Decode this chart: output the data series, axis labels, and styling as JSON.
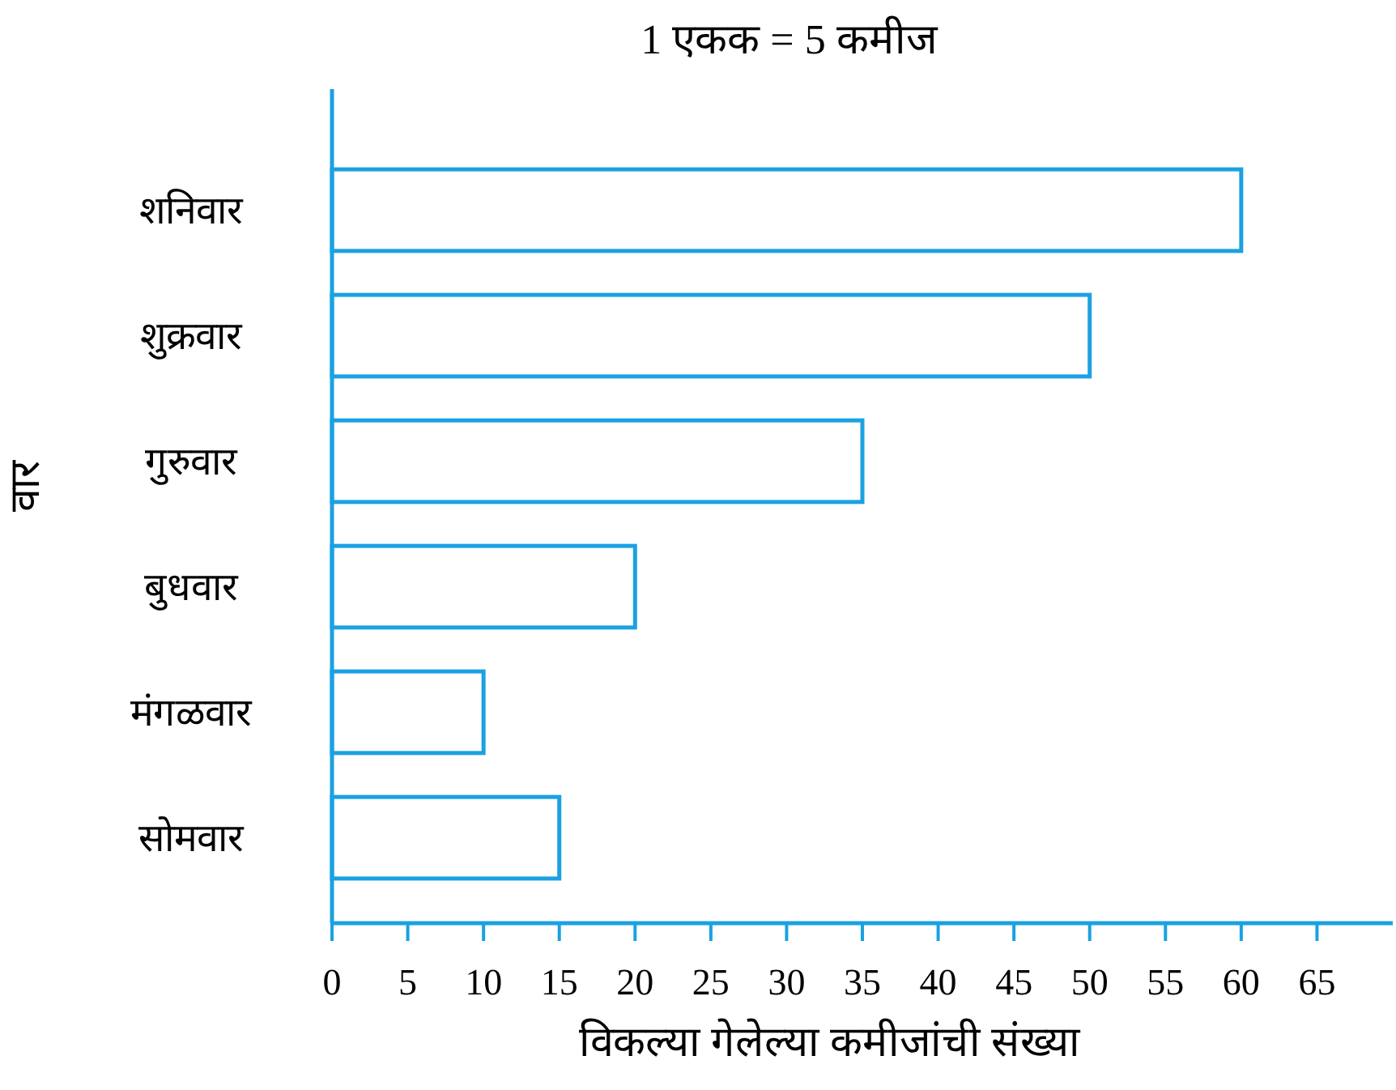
{
  "chart_data": {
    "type": "bar",
    "orientation": "horizontal",
    "title": "1 एकक = 5 कमीज",
    "xlabel": "विकल्या गेलेल्या कमीजांची संख्या",
    "ylabel": "वार",
    "categories": [
      "शनिवार",
      "शुक्रवार",
      "गुरुवार",
      "बुधवार",
      "मंगळवार",
      "सोमवार"
    ],
    "values": [
      60,
      50,
      35,
      20,
      10,
      15
    ],
    "color": "#1ba1e2",
    "xlim": [
      0,
      70
    ],
    "xticks": [
      0,
      5,
      10,
      15,
      20,
      25,
      30,
      35,
      40,
      45,
      50,
      55,
      60,
      65
    ]
  }
}
